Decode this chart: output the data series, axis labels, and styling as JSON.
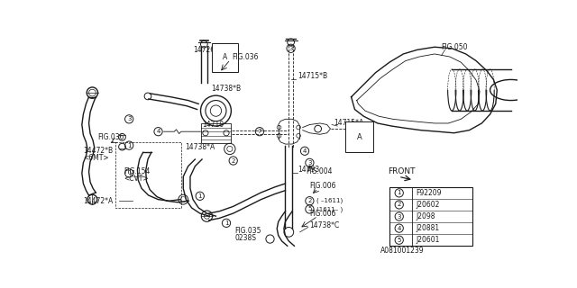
{
  "bg_color": "#ffffff",
  "line_color": "#1a1a1a",
  "legend_items": [
    {
      "num": "1",
      "code": "F92209"
    },
    {
      "num": "2",
      "code": "J20602"
    },
    {
      "num": "3",
      "code": "J2098"
    },
    {
      "num": "4",
      "code": "J20881"
    },
    {
      "num": "5",
      "code": "J20601"
    }
  ],
  "diagram_code": "A081001239"
}
